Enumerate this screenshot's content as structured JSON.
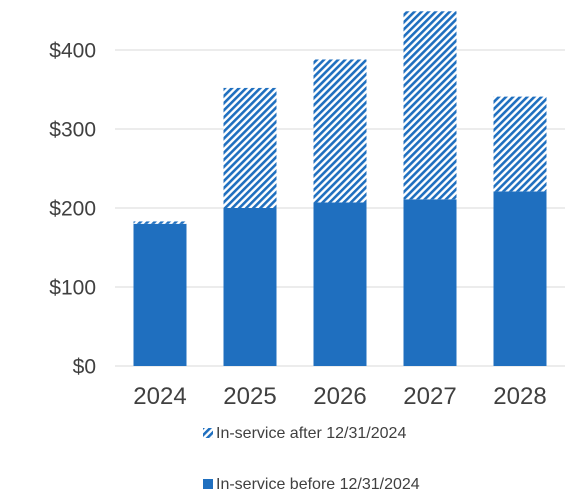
{
  "chart_data": {
    "type": "bar",
    "stacked": true,
    "categories": [
      "2024",
      "2025",
      "2026",
      "2027",
      "2028"
    ],
    "series": [
      {
        "name": "In-service before 12/31/2024",
        "values": [
          180,
          200,
          207,
          211,
          221
        ],
        "color": "#1f6fbf",
        "pattern": "solid"
      },
      {
        "name": "In-service after 12/31/2024",
        "values": [
          3,
          152,
          181,
          238,
          120
        ],
        "color": "#1f6fbf",
        "pattern": "diagonal-hatch"
      }
    ],
    "yticks": [
      "$0",
      "$100",
      "$200",
      "$300",
      "$400"
    ],
    "ylim": [
      0,
      450
    ],
    "grid": true,
    "legend_position": "bottom",
    "title": "",
    "xlabel": "",
    "ylabel": ""
  }
}
